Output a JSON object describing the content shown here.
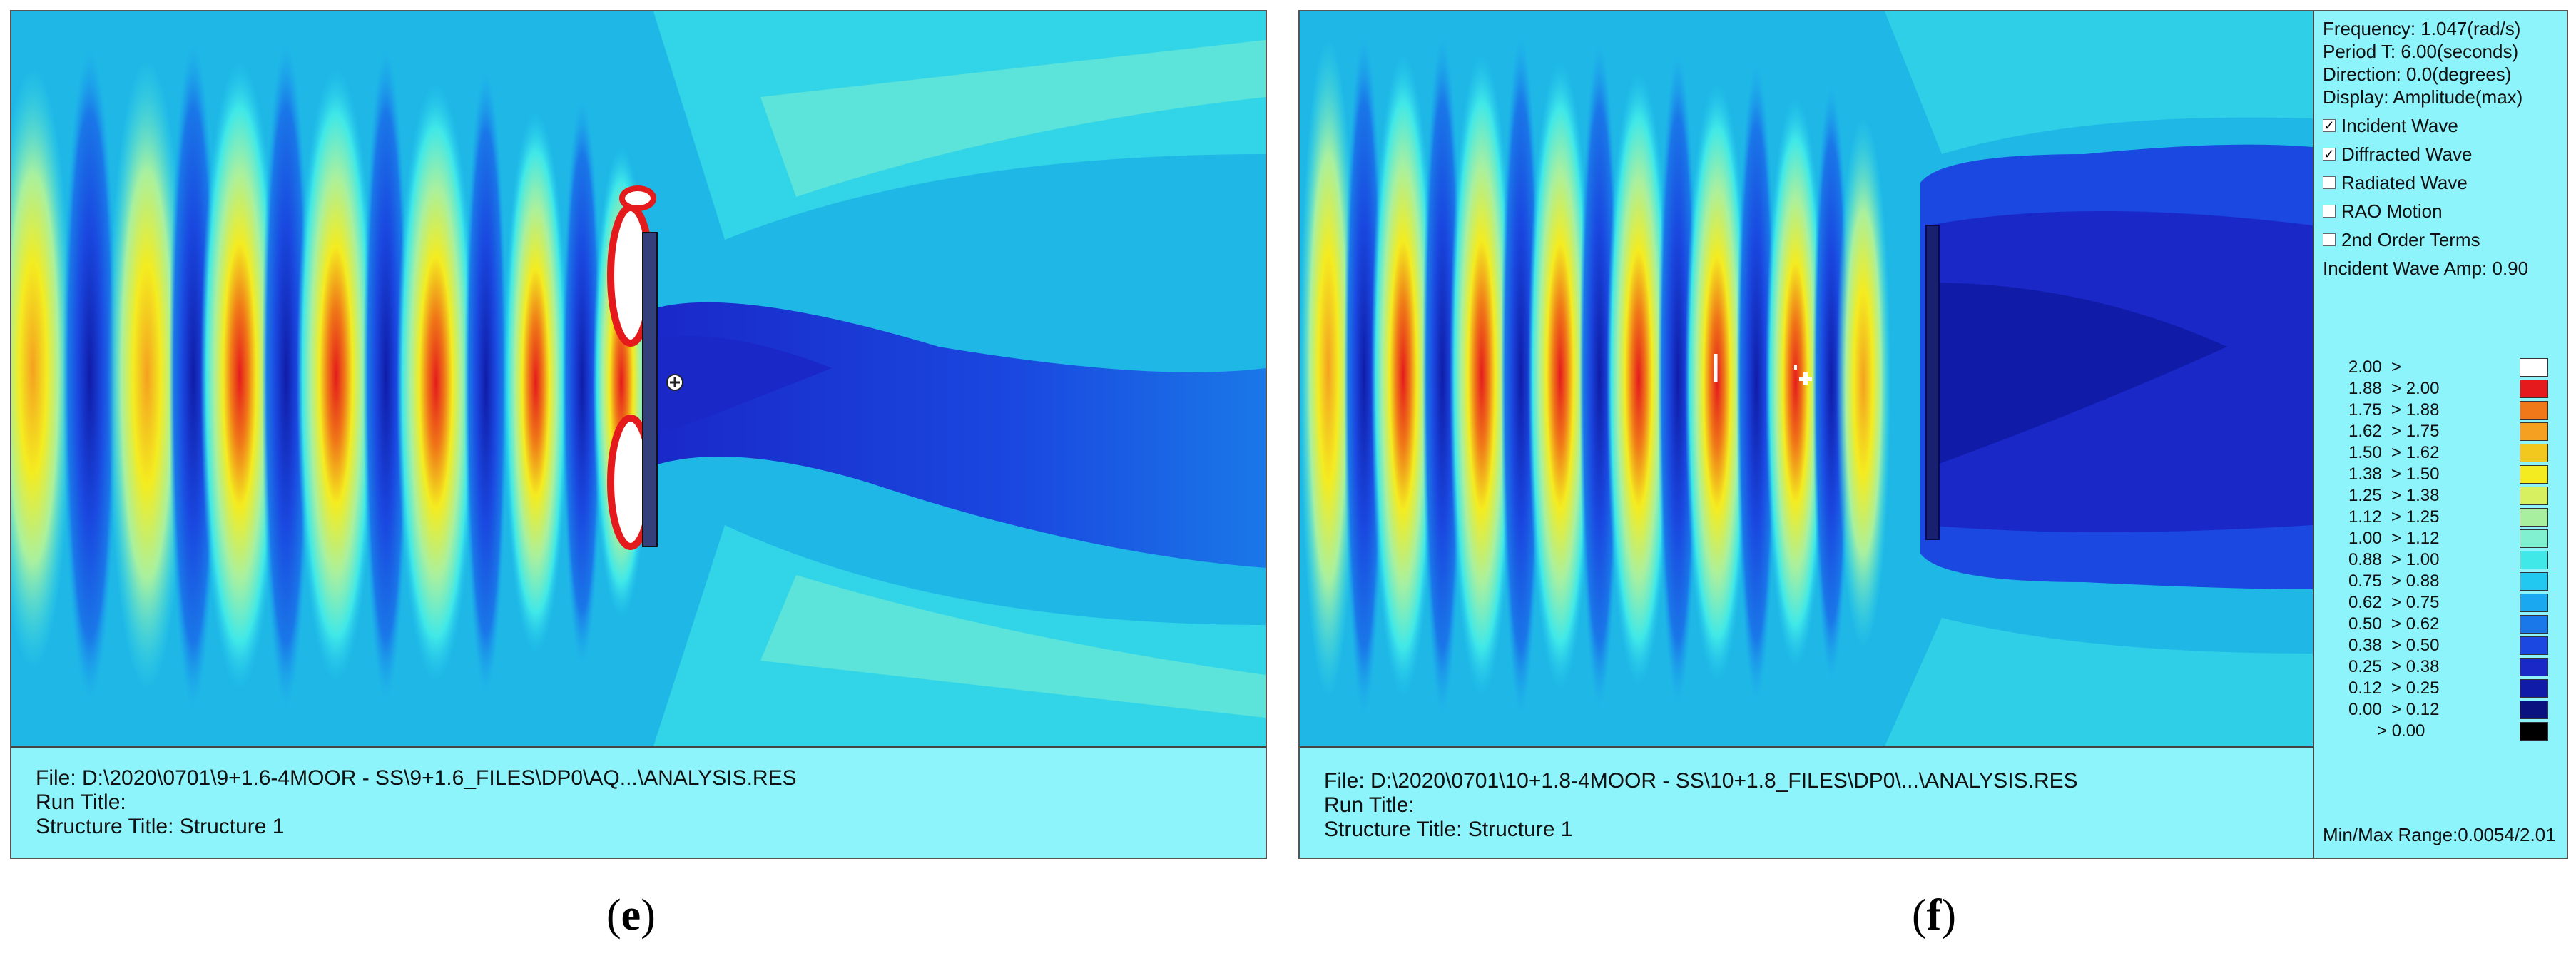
{
  "panel_e": {
    "info": {
      "file": "File: D:\\2020\\0701\\9+1.6-4MOOR - SS\\9+1.6_FILES\\DP0\\AQ...\\ANALYSIS.RES",
      "run_title": "Run Title:",
      "structure_title": "Structure Title: Structure 1"
    },
    "caption_open": "(",
    "caption_letter": "e",
    "caption_close": ")"
  },
  "panel_f": {
    "sidebar": {
      "frequency": "Frequency: 1.047(rad/s)",
      "period": "Period T: 6.00(seconds)",
      "direction": "Direction: 0.0(degrees)",
      "display": "Display: Amplitude(max)",
      "checkboxes": [
        {
          "label": "Incident Wave",
          "checked": true
        },
        {
          "label": "Diffracted Wave",
          "checked": true
        },
        {
          "label": "Radiated Wave",
          "checked": false
        },
        {
          "label": "RAO Motion",
          "checked": false
        },
        {
          "label": "2nd Order Terms",
          "checked": false
        }
      ],
      "incident_amp": "Incident Wave Amp: 0.90",
      "legend": [
        {
          "label": "2.00  >",
          "color": "#ffffff"
        },
        {
          "label": "1.88  > 2.00",
          "color": "#e41a1c"
        },
        {
          "label": "1.75  > 1.88",
          "color": "#f07818"
        },
        {
          "label": "1.62  > 1.75",
          "color": "#f5a020"
        },
        {
          "label": "1.50  > 1.62",
          "color": "#f2c81e"
        },
        {
          "label": "1.38  > 1.50",
          "color": "#f4ec20"
        },
        {
          "label": "1.25  > 1.38",
          "color": "#d6f060"
        },
        {
          "label": "1.12  > 1.25",
          "color": "#a8f0a0"
        },
        {
          "label": "1.00  > 1.12",
          "color": "#80f0d0"
        },
        {
          "label": "0.88  > 1.00",
          "color": "#40e8e8"
        },
        {
          "label": "0.75  > 0.88",
          "color": "#22c8f0"
        },
        {
          "label": "0.62  > 0.75",
          "color": "#1aa8f0"
        },
        {
          "label": "0.50  > 0.62",
          "color": "#1a78e8"
        },
        {
          "label": "0.38  > 0.50",
          "color": "#1a48e0"
        },
        {
          "label": "0.25  > 0.38",
          "color": "#1a28c8"
        },
        {
          "label": "0.12  > 0.25",
          "color": "#101ca8"
        },
        {
          "label": "0.00  > 0.12",
          "color": "#0a1280"
        },
        {
          "label": "      > 0.00",
          "color": "#000000"
        }
      ],
      "minmax": "Min/Max Range:0.0054/2.01"
    },
    "info": {
      "file": "File: D:\\2020\\0701\\10+1.8-4MOOR - SS\\10+1.8_FILES\\DP0\\...\\ANALYSIS.RES",
      "run_title": "Run Title:",
      "structure_title": "Structure Title: Structure 1"
    },
    "caption_open": "(",
    "caption_letter": "f",
    "caption_close": ")"
  }
}
